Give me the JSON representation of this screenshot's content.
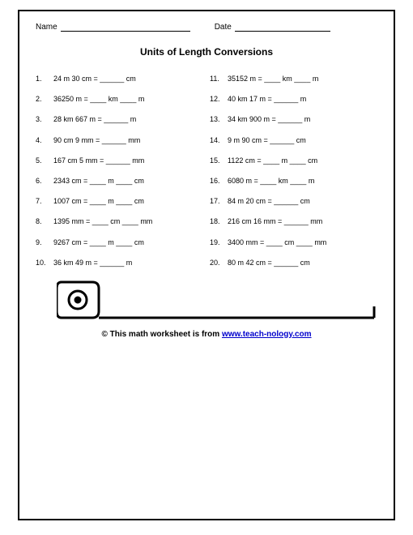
{
  "header": {
    "name_label": "Name",
    "name_line_width": 160,
    "date_label": "Date",
    "date_line_width": 118
  },
  "title": "Units of Length Conversions",
  "problems_left": [
    {
      "n": "1.",
      "t": "24 m 30 cm = ______ cm"
    },
    {
      "n": "2.",
      "t": "36250 m = ____ km ____ m"
    },
    {
      "n": "3.",
      "t": "28 km 667 m = ______ m"
    },
    {
      "n": "4.",
      "t": "90 cm 9 mm = ______ mm"
    },
    {
      "n": "5.",
      "t": "167 cm 5 mm = ______ mm"
    },
    {
      "n": "6.",
      "t": "2343 cm = ____ m ____ cm"
    },
    {
      "n": "7.",
      "t": "1007 cm = ____ m ____ cm"
    },
    {
      "n": "8.",
      "t": "1395 mm = ____ cm ____ mm"
    },
    {
      "n": "9.",
      "t": "9267 cm = ____ m ____ cm"
    },
    {
      "n": "10.",
      "t": "36 km 49 m = ______ m"
    }
  ],
  "problems_right": [
    {
      "n": "11.",
      "t": "35152 m = ____ km ____ m"
    },
    {
      "n": "12.",
      "t": "40 km 17 m = ______ m"
    },
    {
      "n": "13.",
      "t": "34 km 900 m = ______ m"
    },
    {
      "n": "14.",
      "t": "9 m 90 cm = ______ cm"
    },
    {
      "n": "15.",
      "t": "1122 cm = ____ m ____ cm"
    },
    {
      "n": "16.",
      "t": "6080 m = ____ km ____ m"
    },
    {
      "n": "17.",
      "t": "84 m 20 cm = ______ cm"
    },
    {
      "n": "18.",
      "t": "216 cm 16 mm = ______ mm"
    },
    {
      "n": "19.",
      "t": "3400 mm = ____ cm ____ mm"
    },
    {
      "n": "20.",
      "t": "80 m 42 cm = ______ cm"
    }
  ],
  "ruler": {
    "stroke": "#000000",
    "stroke_width": 3
  },
  "footer": {
    "prefix": "© This math worksheet is from ",
    "link_text": "www.teach-nology.com",
    "link_color": "#0000cc"
  }
}
